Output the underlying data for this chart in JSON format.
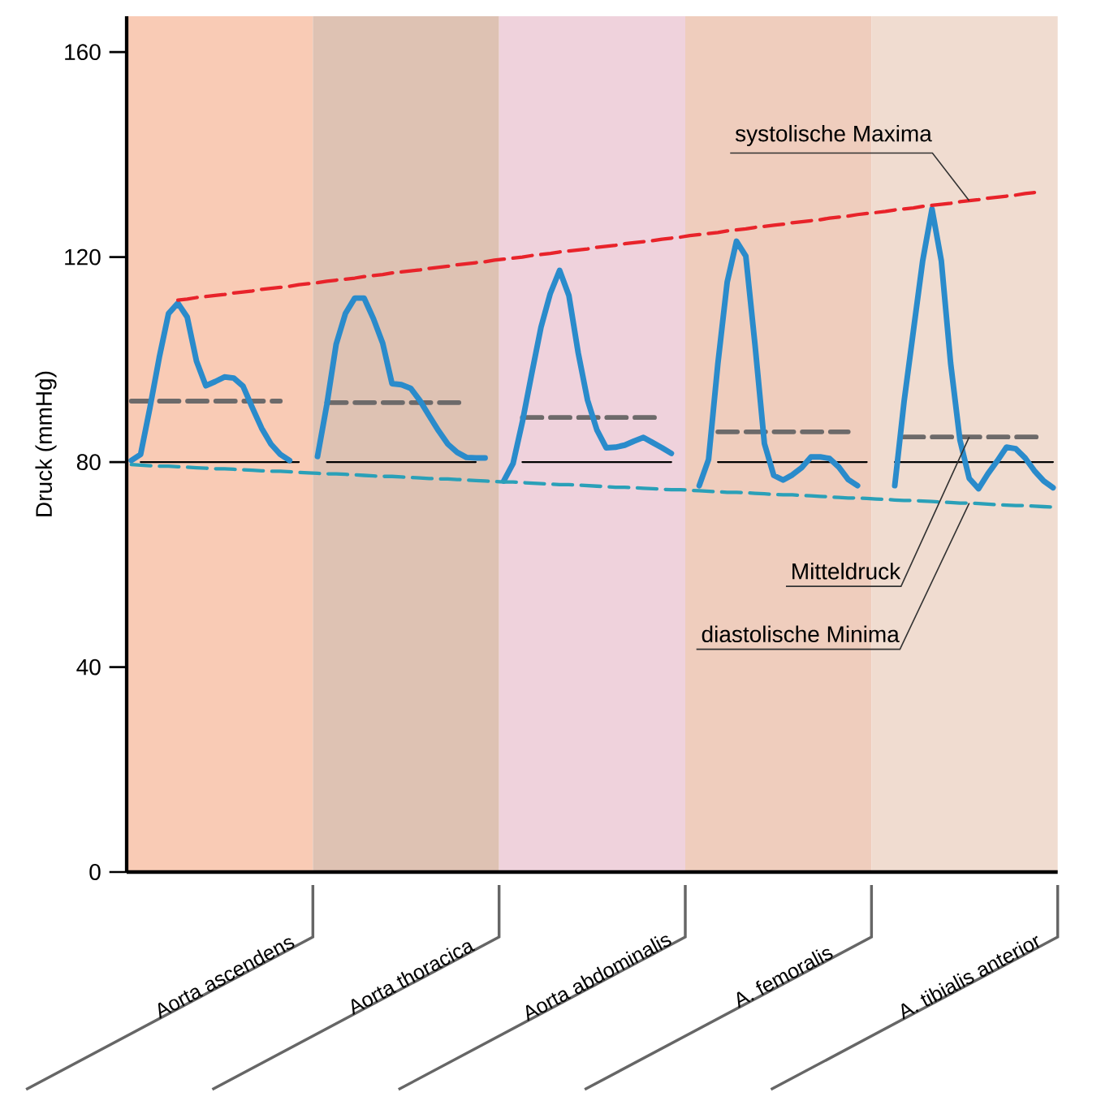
{
  "chart_data": {
    "type": "line",
    "ylabel": "Druck (mmHg)",
    "ylim": [
      0,
      167
    ],
    "yticks": [
      0,
      40,
      80,
      120,
      160
    ],
    "grid": false,
    "categories": [
      null,
      null,
      null,
      null,
      null,
      null,
      null,
      null,
      null,
      null,
      "Aorta ascendens",
      null,
      null,
      null,
      null,
      null,
      null,
      null,
      null,
      null,
      null,
      null,
      null,
      null,
      null,
      null,
      null,
      null,
      null,
      null,
      "Aorta thoracica",
      null,
      null,
      null,
      null,
      null,
      null,
      null,
      null,
      null,
      null,
      null,
      null,
      null,
      null,
      null,
      null,
      null,
      null,
      null,
      "Aorta abdominalis",
      null,
      null,
      null,
      null,
      null,
      null,
      null,
      null,
      null,
      null,
      null,
      null,
      null,
      null,
      null,
      null,
      null,
      null,
      null,
      "A. femoralis",
      null,
      null,
      null,
      null,
      null,
      null,
      null,
      null,
      null,
      null,
      null,
      null,
      null,
      null,
      null,
      null,
      null,
      null,
      null,
      "A. tibialis anterior",
      null,
      null,
      null,
      null,
      null,
      null,
      null,
      null,
      null
    ],
    "series": [
      {
        "color": "#000000",
        "line_style": "solid",
        "values": [
          null,
          80,
          80,
          80,
          80,
          80,
          80,
          80,
          80,
          80,
          80,
          80,
          80,
          80,
          80,
          80,
          80,
          80,
          80,
          null,
          null,
          80,
          80,
          80,
          80,
          80,
          80,
          80,
          80,
          80,
          80,
          80,
          80,
          80,
          80,
          80,
          80,
          80,
          null,
          null,
          null,
          null,
          80,
          80,
          80,
          80,
          80,
          80,
          80,
          80,
          80,
          80,
          80,
          80,
          80,
          80,
          80,
          80,
          80,
          null,
          null,
          null,
          null,
          80,
          80,
          80,
          80,
          80,
          80,
          80,
          80,
          80,
          80,
          80,
          80,
          80,
          80,
          80,
          80,
          80,
          null,
          null,
          80,
          80,
          80,
          80,
          80,
          80,
          80,
          80,
          80,
          80,
          80,
          80,
          80,
          80,
          80,
          80,
          80,
          80
        ]
      },
      {
        "color": "#6d6a6a",
        "line_style": "dashed",
        "values": [
          91.9,
          91.9,
          91.9,
          91.9,
          91.9,
          91.9,
          91.9,
          91.9,
          91.9,
          91.9,
          91.9,
          91.9,
          91.9,
          91.9,
          91.9,
          91.9,
          91.9,
          null,
          null,
          null,
          null,
          91.6,
          91.6,
          91.6,
          91.6,
          91.6,
          91.6,
          91.6,
          91.6,
          91.6,
          91.6,
          91.6,
          91.6,
          91.6,
          91.6,
          91.6,
          91.6,
          null,
          null,
          null,
          null,
          null,
          88.7,
          88.7,
          88.7,
          88.7,
          88.7,
          88.7,
          88.7,
          88.7,
          88.7,
          88.7,
          88.7,
          88.7,
          88.7,
          88.7,
          88.7,
          88.7,
          null,
          null,
          null,
          null,
          null,
          85.9,
          85.9,
          85.9,
          85.9,
          85.9,
          85.9,
          85.9,
          85.9,
          85.9,
          85.9,
          85.9,
          85.9,
          85.9,
          85.9,
          85.9,
          null,
          null,
          null,
          null,
          null,
          84.9,
          84.9,
          84.9,
          84.9,
          84.9,
          84.9,
          84.9,
          84.9,
          84.9,
          84.9,
          84.9,
          84.9,
          84.9,
          84.9,
          84.9,
          84.9,
          null
        ]
      },
      {
        "color": "#2a8bcb",
        "line_style": "solid",
        "values": [
          80.3,
          81.5,
          90.6,
          100.4,
          109,
          111,
          108.3,
          99.7,
          94.9,
          95.7,
          96.6,
          96.4,
          94.8,
          90.6,
          86.6,
          83.5,
          81.5,
          80.3,
          null,
          null,
          81.1,
          91.2,
          103,
          109,
          112,
          112,
          108,
          103.2,
          95.3,
          95.1,
          94.4,
          92,
          89,
          86.1,
          83.5,
          81.9,
          80.9,
          80.8,
          80.8,
          null,
          76.3,
          79.7,
          87.8,
          97.2,
          106.3,
          112.9,
          117.4,
          112.5,
          101.3,
          92.1,
          86.3,
          82.8,
          82.9,
          83.3,
          84.1,
          84.8,
          83.8,
          82.8,
          81.7,
          null,
          null,
          75.4,
          80.5,
          99.2,
          115.1,
          123.1,
          120.2,
          102.7,
          83.6,
          77.4,
          76.5,
          77.5,
          78.9,
          81,
          81,
          80.7,
          79,
          76.6,
          75.4,
          null,
          null,
          null,
          75.4,
          91.8,
          105.6,
          119.3,
          129.4,
          119.3,
          99.3,
          84.3,
          76.8,
          74.8,
          77.7,
          80.2,
          82.9,
          82.6,
          80.8,
          78.3,
          76.3,
          75
        ]
      },
      {
        "color": "#e8232a",
        "line_style": "dashed",
        "values": [
          null,
          null,
          null,
          null,
          null,
          111.6,
          111.8,
          112.1,
          112.3,
          112.5,
          112.7,
          113.0,
          113.2,
          113.4,
          113.7,
          113.9,
          114.1,
          114.3,
          114.6,
          114.8,
          115.0,
          115.3,
          115.5,
          115.7,
          115.9,
          116.2,
          116.4,
          116.6,
          116.9,
          117.1,
          117.3,
          117.5,
          117.8,
          118.0,
          118.2,
          118.5,
          118.7,
          118.9,
          119.1,
          119.4,
          119.6,
          119.8,
          120.0,
          120.3,
          120.5,
          120.7,
          121.0,
          121.2,
          121.4,
          121.6,
          121.9,
          122.1,
          122.3,
          122.6,
          122.8,
          123.0,
          123.2,
          123.5,
          123.7,
          123.9,
          124.2,
          124.4,
          124.6,
          124.8,
          125.1,
          125.3,
          125.5,
          125.8,
          126.0,
          126.2,
          126.4,
          126.7,
          126.9,
          127.1,
          127.3,
          127.6,
          127.8,
          128.0,
          128.3,
          128.5,
          128.7,
          128.9,
          129.2,
          129.4,
          129.6,
          129.9,
          130.1,
          130.3,
          130.5,
          130.8,
          131.0,
          131.2,
          131.5,
          131.7,
          131.9,
          132.1,
          132.4,
          132.6,
          null,
          null
        ]
      },
      {
        "color": "#2aa0b8",
        "line_style": "dashed",
        "values": [
          79.5,
          79.4,
          79.3,
          79.2,
          79.2,
          79.1,
          79.0,
          78.9,
          78.8,
          78.7,
          78.7,
          78.6,
          78.5,
          78.4,
          78.3,
          78.2,
          78.2,
          78.1,
          78.0,
          77.9,
          77.8,
          77.7,
          77.7,
          77.6,
          77.5,
          77.4,
          77.3,
          77.2,
          77.2,
          77.1,
          77.0,
          76.9,
          76.8,
          76.7,
          76.7,
          76.6,
          76.5,
          76.4,
          76.3,
          76.2,
          76.1,
          76.1,
          76.0,
          75.9,
          75.8,
          75.7,
          75.6,
          75.6,
          75.5,
          75.4,
          75.3,
          75.2,
          75.1,
          75.1,
          75.0,
          74.9,
          74.8,
          74.7,
          74.6,
          74.6,
          74.5,
          74.4,
          74.3,
          74.2,
          74.1,
          74.1,
          74.0,
          73.9,
          73.8,
          73.7,
          73.6,
          73.6,
          73.5,
          73.4,
          73.3,
          73.2,
          73.1,
          73.0,
          73.0,
          72.9,
          72.8,
          72.7,
          72.6,
          72.5,
          72.5,
          72.4,
          72.3,
          72.2,
          72.1,
          72.0,
          72.0,
          71.9,
          71.8,
          71.7,
          71.6,
          71.5,
          71.5,
          71.4,
          71.3,
          71.2
        ]
      }
    ],
    "annotations": [
      {
        "text": "systolische Maxima",
        "x": "A. tibialis anterior",
        "y": 131.0
      },
      {
        "text": "Mitteldruck",
        "x": "A. tibialis anterior",
        "y": 84.9
      },
      {
        "text": "diastolische Minima",
        "x": "A. tibialis anterior",
        "y": 72.0
      }
    ]
  }
}
